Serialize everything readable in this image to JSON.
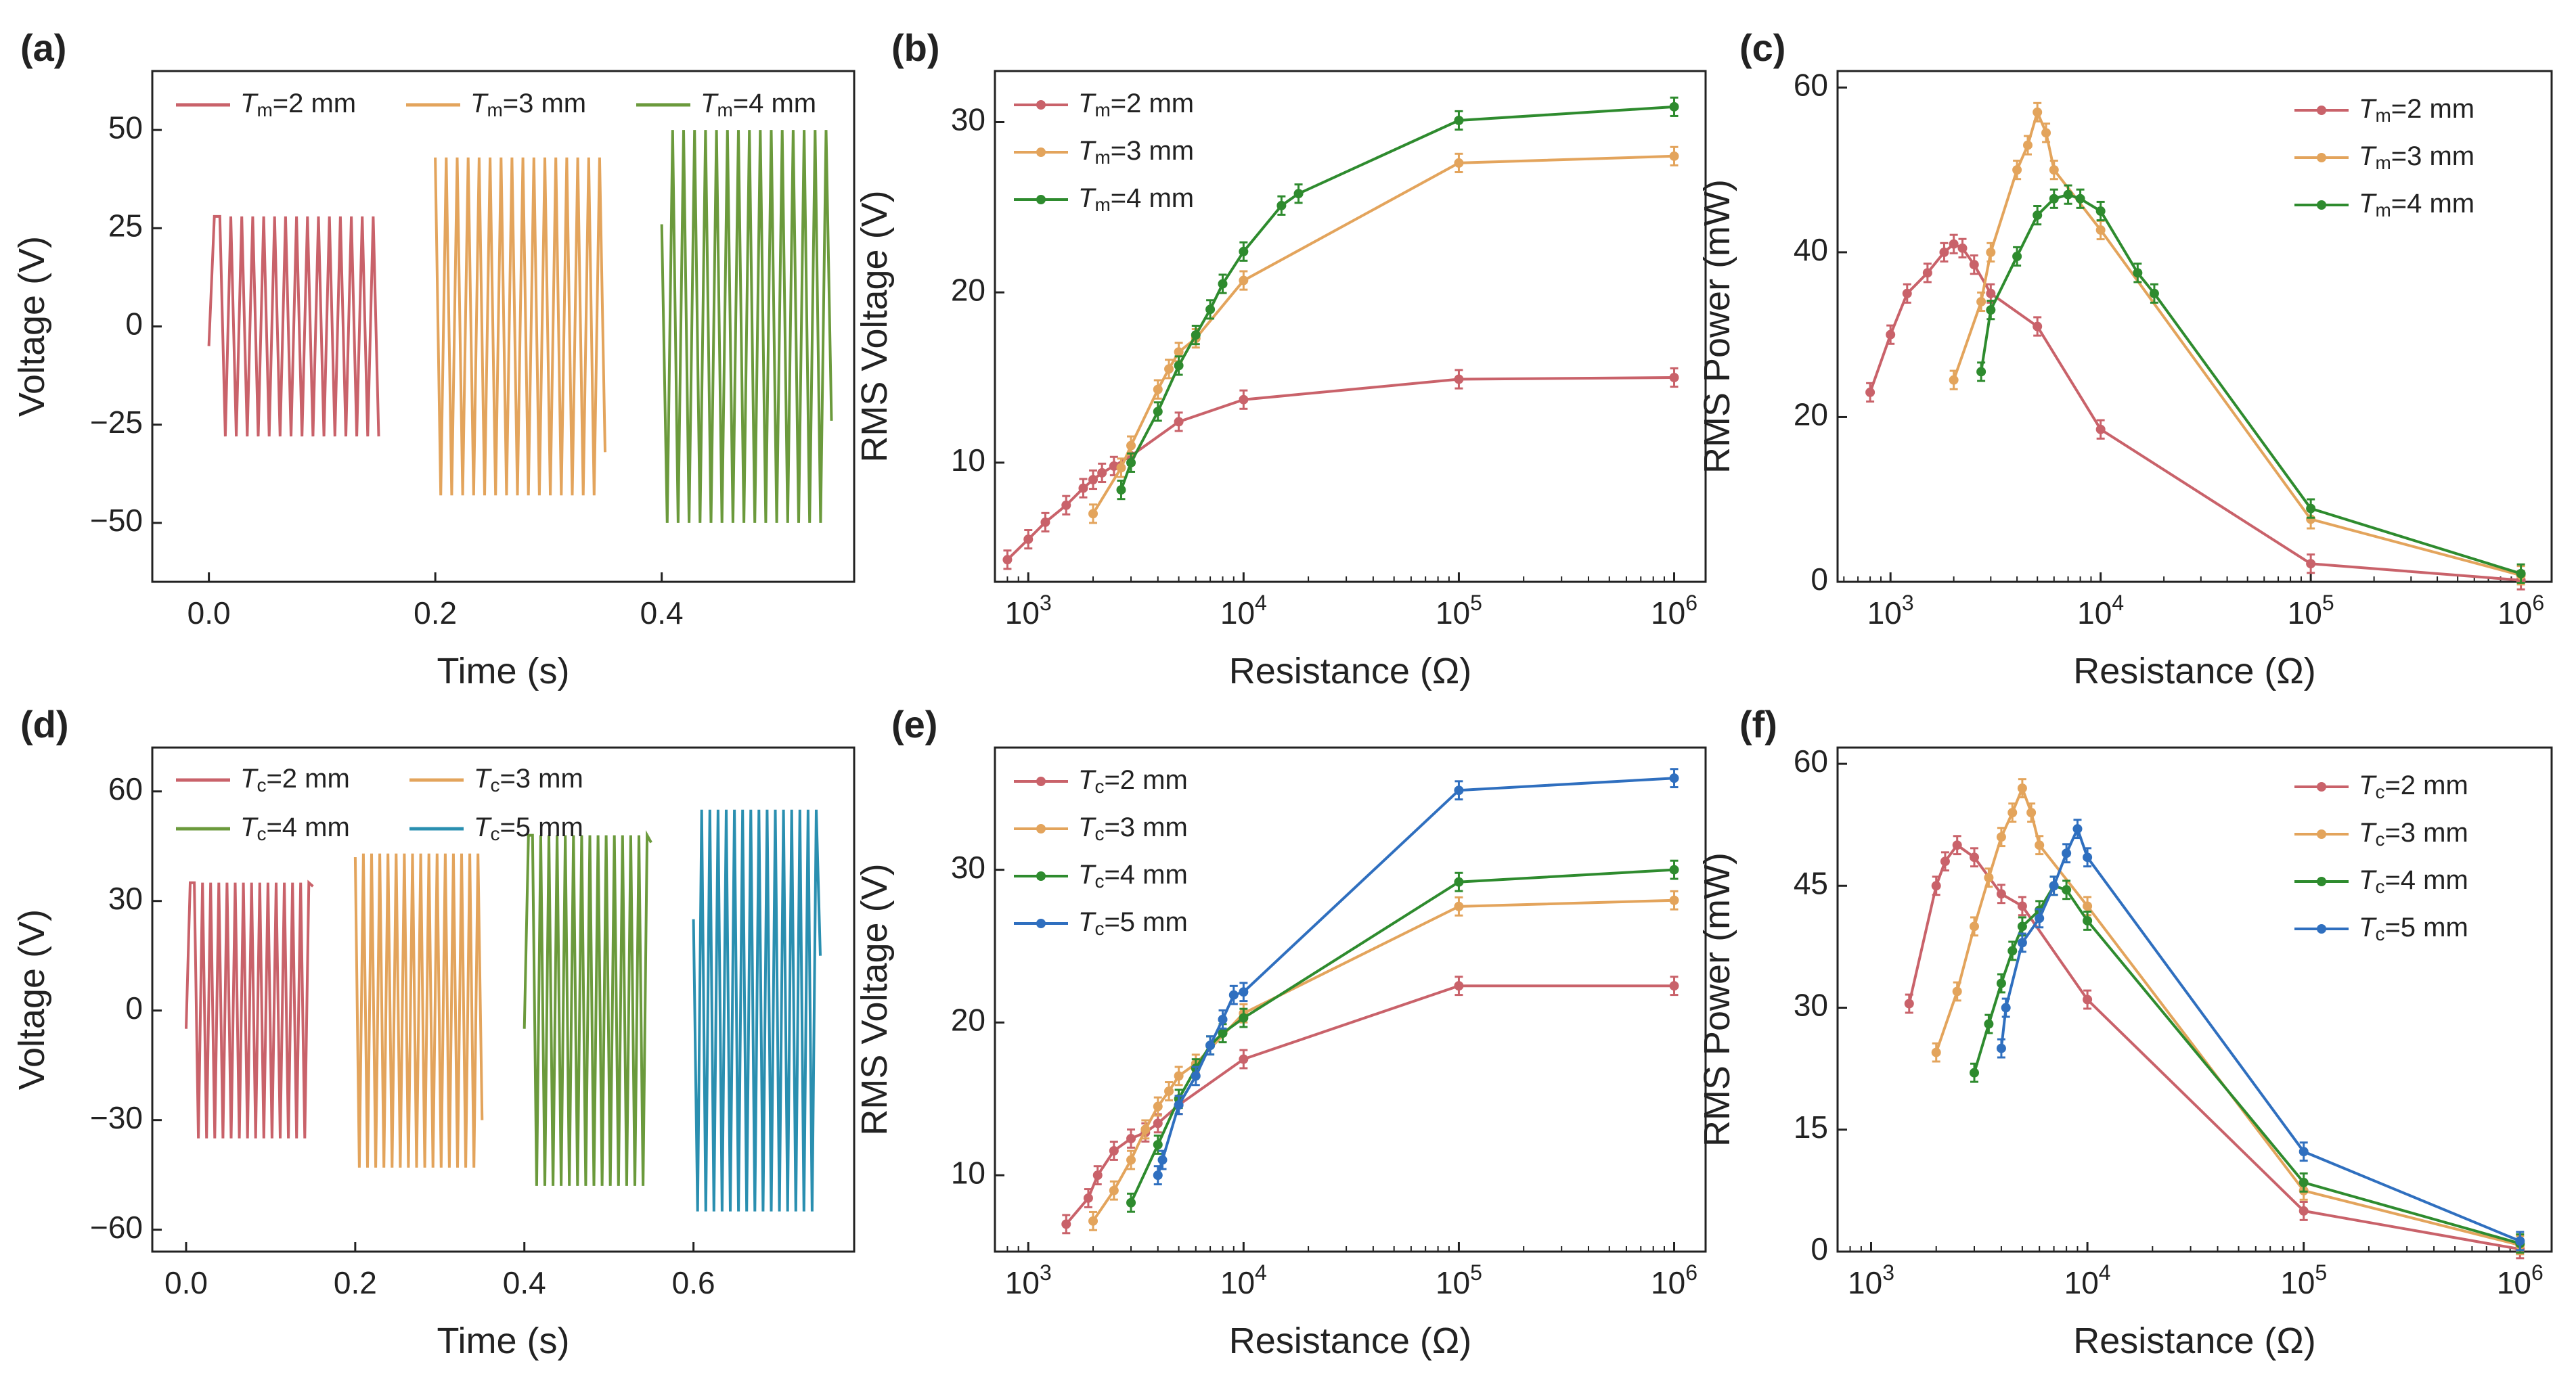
{
  "figure": {
    "panels": [
      {
        "id": "a",
        "label": "(a)",
        "type": "waveform",
        "xlabel": "Time (s)",
        "ylabel": "Voltage (V)",
        "xlim": [
          -0.05,
          0.57
        ],
        "ylim": [
          -65,
          65
        ],
        "xticks": [
          0.0,
          0.2,
          0.4
        ],
        "xtick_labels": [
          "0.0",
          "0.2",
          "0.4"
        ],
        "yticks": [
          -50,
          -25,
          0,
          25,
          50
        ],
        "ytick_labels": [
          "−50",
          "−25",
          "0",
          "25",
          "50"
        ],
        "legend": {
          "layout": "row",
          "position": "top"
        },
        "series": [
          {
            "sym": "T",
            "sub": "m",
            "rest": "=2 mm",
            "color": "#c9626a",
            "t_start": 0.0,
            "t_end": 0.15,
            "amplitude": 28,
            "cycles": 15,
            "start_value": -5,
            "end_value": -28
          },
          {
            "sym": "T",
            "sub": "m",
            "rest": "=3 mm",
            "color": "#e3a45c",
            "t_start": 0.2,
            "t_end": 0.35,
            "amplitude": 43,
            "cycles": 15,
            "start_value": 43,
            "end_value": -32
          },
          {
            "sym": "T",
            "sub": "m",
            "rest": "=4 mm",
            "color": "#6b9a3c",
            "t_start": 0.4,
            "t_end": 0.55,
            "amplitude": 50,
            "cycles": 15,
            "start_value": 26,
            "end_value": -24
          }
        ]
      },
      {
        "id": "b",
        "label": "(b)",
        "type": "line",
        "xlabel": "Resistance (Ω)",
        "ylabel": "RMS Voltage (V)",
        "xscale": "log",
        "xlim": [
          700,
          1400000
        ],
        "ylim": [
          3,
          33
        ],
        "yticks": [
          10,
          20,
          30
        ],
        "ytick_labels": [
          "10",
          "20",
          "30"
        ],
        "xticks": [
          1000,
          10000,
          100000,
          1000000
        ],
        "xtick_bases": [
          "10",
          "10",
          "10",
          "10"
        ],
        "xtick_exps": [
          "3",
          "4",
          "5",
          "6"
        ],
        "legend": {
          "layout": "column",
          "position": "top-left"
        },
        "series": [
          {
            "sym": "T",
            "sub": "m",
            "rest": "=2 mm",
            "color": "#c9626a",
            "x": [
              800,
              1000,
              1200,
              1500,
              1800,
              2000,
              2200,
              2500,
              3000,
              5000,
              10000,
              100000,
              1000000
            ],
            "y": [
              4.3,
              5.5,
              6.5,
              7.5,
              8.5,
              9.0,
              9.4,
              9.8,
              10.4,
              12.4,
              13.7,
              14.9,
              15.0
            ]
          },
          {
            "sym": "T",
            "sub": "m",
            "rest": "=3 mm",
            "color": "#e3a45c",
            "x": [
              2000,
              2700,
              3000,
              4000,
              4500,
              5000,
              6000,
              10000,
              100000,
              1000000
            ],
            "y": [
              7.0,
              9.7,
              11.0,
              14.3,
              15.5,
              16.5,
              17.3,
              20.7,
              27.6,
              28.0
            ]
          },
          {
            "sym": "T",
            "sub": "m",
            "rest": "=4 mm",
            "color": "#2e8b2e",
            "x": [
              2700,
              3000,
              4000,
              5000,
              6000,
              7000,
              8000,
              10000,
              15000,
              18000,
              100000,
              1000000
            ],
            "y": [
              8.4,
              10.0,
              13.0,
              15.7,
              17.5,
              19.0,
              20.5,
              22.4,
              25.1,
              25.8,
              30.1,
              30.9
            ]
          }
        ]
      },
      {
        "id": "c",
        "label": "(c)",
        "type": "line",
        "xlabel": "Resistance (Ω)",
        "ylabel": "RMS Power (mW)",
        "xscale": "log",
        "xlim": [
          560,
          1400000
        ],
        "ylim": [
          0,
          62
        ],
        "yticks": [
          0,
          20,
          40,
          60
        ],
        "ytick_labels": [
          "0",
          "20",
          "40",
          "60"
        ],
        "xticks": [
          1000,
          10000,
          100000,
          1000000
        ],
        "xtick_bases": [
          "10",
          "10",
          "10",
          "10"
        ],
        "xtick_exps": [
          "3",
          "4",
          "5",
          "6"
        ],
        "legend": {
          "layout": "column",
          "position": "top-right"
        },
        "series": [
          {
            "sym": "T",
            "sub": "m",
            "rest": "=2 mm",
            "color": "#c9626a",
            "x": [
              800,
              1000,
              1200,
              1500,
              1800,
              2000,
              2200,
              2500,
              3000,
              5000,
              10000,
              100000,
              1000000
            ],
            "y": [
              23,
              30,
              35,
              37.5,
              40,
              41,
              40.5,
              38.5,
              35,
              31,
              18.5,
              2.2,
              0.2
            ]
          },
          {
            "sym": "T",
            "sub": "m",
            "rest": "=3 mm",
            "color": "#e3a45c",
            "x": [
              2000,
              2700,
              3000,
              4000,
              4500,
              5000,
              5500,
              6000,
              10000,
              100000,
              1000000
            ],
            "y": [
              24.5,
              34,
              40,
              50,
              53,
              57,
              54.5,
              50,
              42.7,
              7.6,
              0.8
            ]
          },
          {
            "sym": "T",
            "sub": "m",
            "rest": "=4 mm",
            "color": "#2e8b2e",
            "x": [
              2700,
              3000,
              4000,
              5000,
              6000,
              7000,
              8000,
              10000,
              15000,
              18000,
              100000,
              1000000
            ],
            "y": [
              25.5,
              33,
              39.5,
              44.5,
              46.5,
              47,
              46.5,
              45,
              37.5,
              35,
              8.9,
              1.0
            ]
          }
        ]
      },
      {
        "id": "d",
        "label": "(d)",
        "type": "waveform",
        "xlabel": "Time (s)",
        "ylabel": "Voltage (V)",
        "xlim": [
          -0.04,
          0.79
        ],
        "ylim": [
          -66,
          72
        ],
        "xticks": [
          0.0,
          0.2,
          0.4,
          0.6
        ],
        "xtick_labels": [
          "0.0",
          "0.2",
          "0.4",
          "0.6"
        ],
        "yticks": [
          -60,
          -30,
          0,
          30,
          60
        ],
        "ytick_labels": [
          "−60",
          "−30",
          "0",
          "30",
          "60"
        ],
        "legend": {
          "layout": "grid",
          "position": "top"
        },
        "series": [
          {
            "sym": "T",
            "sub": "c",
            "rest": "=2 mm",
            "color": "#c9626a",
            "t_start": 0.0,
            "t_end": 0.15,
            "amplitude": 35,
            "cycles": 15,
            "start_value": -5,
            "end_value": 34
          },
          {
            "sym": "T",
            "sub": "c",
            "rest": "=3 mm",
            "color": "#e3a45c",
            "t_start": 0.2,
            "t_end": 0.35,
            "amplitude": 43,
            "cycles": 15,
            "start_value": 42,
            "end_value": -30
          },
          {
            "sym": "T",
            "sub": "c",
            "rest": "=4 mm",
            "color": "#6b9a3c",
            "t_start": 0.4,
            "t_end": 0.55,
            "amplitude": 48,
            "cycles": 15,
            "start_value": -5,
            "end_value": 46
          },
          {
            "sym": "T",
            "sub": "c",
            "rest": "=5 mm",
            "color": "#2a8fb0",
            "t_start": 0.6,
            "t_end": 0.75,
            "amplitude": 55,
            "cycles": 15,
            "start_value": 25,
            "end_value": 15
          }
        ]
      },
      {
        "id": "e",
        "label": "(e)",
        "type": "line",
        "xlabel": "Resistance (Ω)",
        "ylabel": "RMS Voltage (V)",
        "xscale": "log",
        "xlim": [
          700,
          1400000
        ],
        "ylim": [
          5,
          38
        ],
        "yticks": [
          10,
          20,
          30
        ],
        "ytick_labels": [
          "10",
          "20",
          "30"
        ],
        "xticks": [
          1000,
          10000,
          100000,
          1000000
        ],
        "xtick_bases": [
          "10",
          "10",
          "10",
          "10"
        ],
        "xtick_exps": [
          "3",
          "4",
          "5",
          "6"
        ],
        "legend": {
          "layout": "column",
          "position": "top-left"
        },
        "series": [
          {
            "sym": "T",
            "sub": "c",
            "rest": "=2 mm",
            "color": "#c9626a",
            "x": [
              1500,
              1900,
              2100,
              2500,
              3000,
              3500,
              4000,
              5000,
              10000,
              100000,
              1000000
            ],
            "y": [
              6.8,
              8.5,
              10.0,
              11.6,
              12.4,
              12.8,
              13.4,
              14.6,
              17.6,
              22.4,
              22.4
            ]
          },
          {
            "sym": "T",
            "sub": "c",
            "rest": "=3 mm",
            "color": "#e3a45c",
            "x": [
              2000,
              2500,
              3000,
              3500,
              4000,
              4500,
              5000,
              6000,
              10000,
              100000,
              1000000
            ],
            "y": [
              7.0,
              9.0,
              11.0,
              13.0,
              14.5,
              15.5,
              16.5,
              17.3,
              20.6,
              27.6,
              28.0
            ]
          },
          {
            "sym": "T",
            "sub": "c",
            "rest": "=4 mm",
            "color": "#2e8b2e",
            "x": [
              3000,
              4000,
              5000,
              6000,
              7000,
              8000,
              10000,
              100000,
              1000000
            ],
            "y": [
              8.2,
              12.0,
              15.0,
              17.0,
              18.5,
              19.3,
              20.3,
              29.2,
              30.0
            ]
          },
          {
            "sym": "T",
            "sub": "c",
            "rest": "=5 mm",
            "color": "#2f6fbf",
            "x": [
              4000,
              4200,
              5000,
              6000,
              7000,
              8000,
              9000,
              10000,
              100000,
              1000000
            ],
            "y": [
              10.0,
              11.0,
              14.6,
              16.5,
              18.5,
              20.2,
              21.8,
              22.0,
              35.2,
              36.0
            ]
          }
        ]
      },
      {
        "id": "f",
        "label": "(f)",
        "type": "line",
        "xlabel": "Resistance (Ω)",
        "ylabel": "RMS Power (mW)",
        "xscale": "log",
        "xlim": [
          700,
          1400000
        ],
        "ylim": [
          0,
          62
        ],
        "yticks": [
          0,
          15,
          30,
          45,
          60
        ],
        "ytick_labels": [
          "0",
          "15",
          "30",
          "45",
          "60"
        ],
        "xticks": [
          1000,
          10000,
          100000,
          1000000
        ],
        "xtick_bases": [
          "10",
          "10",
          "10",
          "10"
        ],
        "xtick_exps": [
          "3",
          "4",
          "5",
          "6"
        ],
        "legend": {
          "layout": "column",
          "position": "top-right"
        },
        "series": [
          {
            "sym": "T",
            "sub": "c",
            "rest": "=2 mm",
            "color": "#c9626a",
            "x": [
              1500,
              2000,
              2200,
              2500,
              3000,
              4000,
              5000,
              10000,
              100000,
              1000000
            ],
            "y": [
              30.5,
              45,
              48,
              50,
              48.5,
              44,
              42.5,
              31,
              5,
              0.3
            ]
          },
          {
            "sym": "T",
            "sub": "c",
            "rest": "=3 mm",
            "color": "#e3a45c",
            "x": [
              2000,
              2500,
              3000,
              3500,
              4000,
              4500,
              5000,
              5500,
              6000,
              10000,
              100000,
              1000000
            ],
            "y": [
              24.5,
              32,
              40,
              46,
              51,
              54,
              57,
              54,
              50,
              42.5,
              7.5,
              0.8
            ]
          },
          {
            "sym": "T",
            "sub": "c",
            "rest": "=4 mm",
            "color": "#2e8b2e",
            "x": [
              3000,
              3500,
              4000,
              4500,
              5000,
              6000,
              7000,
              8000,
              10000,
              100000,
              1000000
            ],
            "y": [
              22,
              28,
              33,
              37,
              40,
              42,
              45,
              44.5,
              40.7,
              8.5,
              1.0
            ]
          },
          {
            "sym": "T",
            "sub": "c",
            "rest": "=5 mm",
            "color": "#2f6fbf",
            "x": [
              4000,
              4200,
              5000,
              6000,
              7000,
              8000,
              9000,
              10000,
              100000,
              1000000
            ],
            "y": [
              25,
              30,
              38,
              41,
              45,
              49,
              52,
              48.5,
              12.3,
              1.3
            ]
          }
        ]
      }
    ]
  }
}
